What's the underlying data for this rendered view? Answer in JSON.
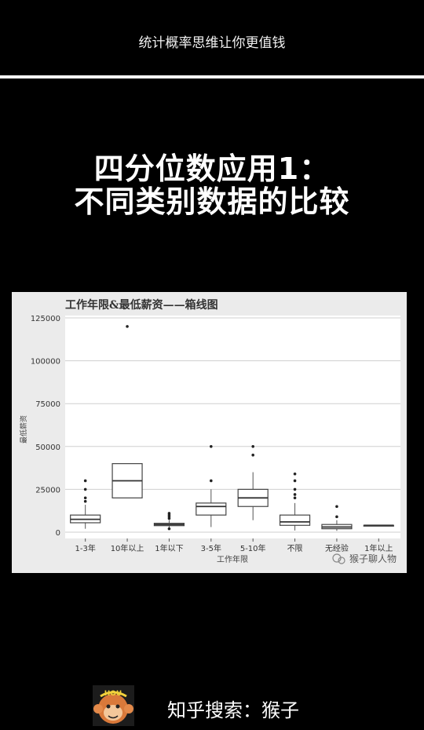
{
  "header": {
    "caption": "统计概率思维让你更值钱"
  },
  "headline": {
    "line1": "四分位数应用1：",
    "line2": "不同类别数据的比较"
  },
  "chart_data": {
    "type": "box",
    "title": "工作年限&最低薪资——箱线图",
    "xlabel": "工作年限",
    "ylabel": "最低薪资",
    "ylim": [
      -3000,
      126000
    ],
    "yticks": [
      0,
      25000,
      50000,
      75000,
      100000,
      125000
    ],
    "grid": true,
    "watermark": "猴子聊人物",
    "categories": [
      "1-3年",
      "10年以上",
      "1年以下",
      "3-5年",
      "5-10年",
      "不限",
      "无经验",
      "1年以上"
    ],
    "boxes": [
      {
        "category": "1-3年",
        "whisker_low": 2000,
        "q1": 5500,
        "median": 7500,
        "q3": 10000,
        "whisker_high": 16000,
        "outliers": [
          18000,
          20000,
          25000,
          30000
        ]
      },
      {
        "category": "10年以上",
        "whisker_low": 20000,
        "q1": 20000,
        "median": 30000,
        "q3": 40000,
        "whisker_high": 40000,
        "outliers": [
          120000
        ]
      },
      {
        "category": "1年以下",
        "whisker_low": 2500,
        "q1": 3800,
        "median": 4500,
        "q3": 5200,
        "whisker_high": 7000,
        "outliers": [
          2000,
          8000,
          9000,
          10000,
          11000
        ]
      },
      {
        "category": "3-5年",
        "whisker_low": 3000,
        "q1": 10000,
        "median": 15000,
        "q3": 17000,
        "whisker_high": 25000,
        "outliers": [
          30000,
          50000
        ]
      },
      {
        "category": "5-10年",
        "whisker_low": 7000,
        "q1": 15000,
        "median": 20000,
        "q3": 25000,
        "whisker_high": 35000,
        "outliers": [
          45000,
          50000
        ]
      },
      {
        "category": "不限",
        "whisker_low": 1000,
        "q1": 4000,
        "median": 6000,
        "q3": 10000,
        "whisker_high": 17000,
        "outliers": [
          20000,
          22000,
          25000,
          30000,
          34000
        ]
      },
      {
        "category": "无经验",
        "whisker_low": 800,
        "q1": 2000,
        "median": 3000,
        "q3": 4500,
        "whisker_high": 7000,
        "outliers": [
          9000,
          15000
        ]
      },
      {
        "category": "1年以上",
        "whisker_low": 4000,
        "q1": 4000,
        "median": 4000,
        "q3": 4000,
        "whisker_high": 4000,
        "outliers": []
      }
    ]
  },
  "footer": {
    "logo_text": "HOU",
    "search_text": "知乎搜索：猴子"
  }
}
